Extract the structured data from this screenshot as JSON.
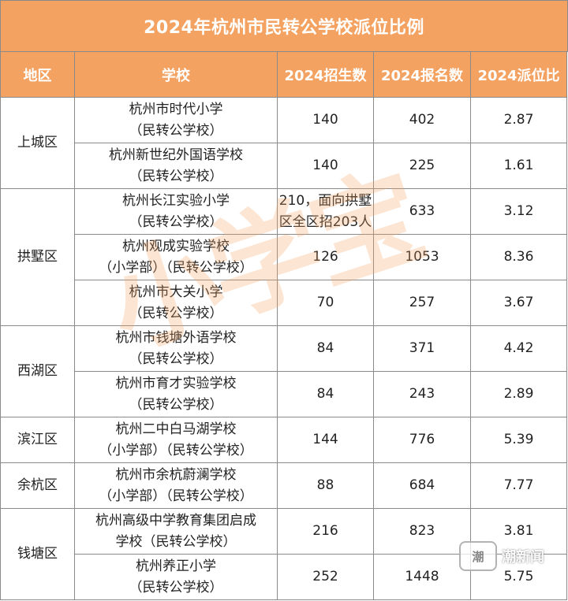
{
  "title": "2024年杭州市民转公学校派位比例",
  "headers": {
    "district": "地区",
    "school": "学校",
    "enroll": "2024招生数",
    "applicants": "2024报名数",
    "ratio": "2024派位比"
  },
  "districts": [
    "上城区",
    "拱墅区",
    "西湖区",
    "滨江区",
    "余杭区",
    "钱塘区"
  ],
  "rows": [
    {
      "school_l1": "杭州市时代小学",
      "school_l2": "（民转公学校）",
      "enroll": "140",
      "applicants": "402",
      "ratio": "2.87"
    },
    {
      "school_l1": "杭州新世纪外国语学校",
      "school_l2": "（民转公学校）",
      "enroll": "140",
      "applicants": "225",
      "ratio": "1.61"
    },
    {
      "school_l1": "杭州长江实验小学",
      "school_l2": "（民转公学校）",
      "enroll_l1": "210，面向拱墅",
      "enroll_l2": "区全区招203人",
      "applicants": "633",
      "ratio": "3.12"
    },
    {
      "school_l1": "杭州观成实验学校",
      "school_l2": "（小学部）（民转公学校）",
      "enroll": "126",
      "applicants": "1053",
      "ratio": "8.36"
    },
    {
      "school_l1": "杭州市大关小学",
      "school_l2": "（民转公学校）",
      "enroll": "70",
      "applicants": "257",
      "ratio": "3.67"
    },
    {
      "school_l1": "杭州市钱塘外语学校",
      "school_l2": "（民转公学校）",
      "enroll": "84",
      "applicants": "371",
      "ratio": "4.42"
    },
    {
      "school_l1": "杭州市育才实验学校",
      "school_l2": "（民转公学校）",
      "enroll": "84",
      "applicants": "243",
      "ratio": "2.89"
    },
    {
      "school_l1": "杭州二中白马湖学校",
      "school_l2": "（小学部）（民转公学校）",
      "enroll": "144",
      "applicants": "776",
      "ratio": "5.39"
    },
    {
      "school_l1": "杭州市余杭蔚澜学校",
      "school_l2": "（小学部）（民转公学校）",
      "enroll": "88",
      "applicants": "684",
      "ratio": "7.77"
    },
    {
      "school_l1": "杭州高级中学教育集团启成",
      "school_l2": "学校（民转公学校）",
      "enroll": "216",
      "applicants": "823",
      "ratio": "3.81"
    },
    {
      "school_l1": "杭州养正小学",
      "school_l2": "（民转公学校）",
      "enroll": "252",
      "applicants": "1448",
      "ratio": "5.75"
    }
  ],
  "watermark_text": "小学宝",
  "logo": {
    "mark": "潮",
    "word": "潮新闻"
  },
  "colors": {
    "header_bg": "#f4a261",
    "header_text": "#ffffff",
    "border": "#8a8a8a"
  }
}
